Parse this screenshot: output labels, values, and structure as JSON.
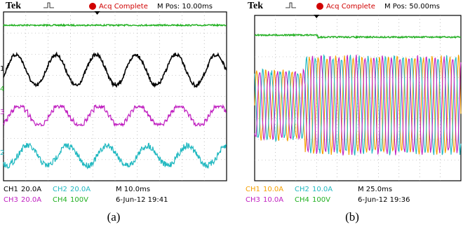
{
  "panels": [
    {
      "brand": "Tek",
      "status": "Acq Complete",
      "position": "M Pos: 10.00ms",
      "markers": [
        "1",
        "4",
        "3",
        "2"
      ],
      "readouts": [
        {
          "channel": "CH1",
          "scale": "20.0A"
        },
        {
          "channel": "CH2",
          "scale": "20.0A"
        },
        {
          "channel": "CH3",
          "scale": "20.0A"
        },
        {
          "channel": "CH4",
          "scale": "100V"
        }
      ],
      "timebase": "M 10.0ms",
      "timestamp": "6-Jun-12 19:41",
      "caption": "(a)"
    },
    {
      "brand": "Tek",
      "status": "Acq Complete",
      "position": "M Pos: 50.00ms",
      "readouts": [
        {
          "channel": "CH1",
          "scale": "10.0A"
        },
        {
          "channel": "CH2",
          "scale": "10.0A"
        },
        {
          "channel": "CH3",
          "scale": "10.0A"
        },
        {
          "channel": "CH4",
          "scale": "100V"
        }
      ],
      "timebase": "M 25.0ms",
      "timestamp": "6-Jun-12 19:36",
      "caption": "(b)"
    }
  ]
}
